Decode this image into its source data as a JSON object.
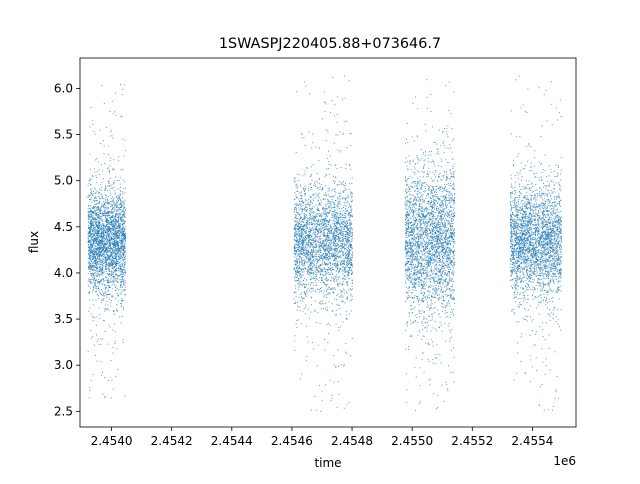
{
  "chart_data": {
    "type": "scatter",
    "title": "1SWASPJ220405.88+073646.7",
    "xlabel": "time",
    "ylabel": "flux",
    "x_offset_label": "1e6",
    "xlim": [
      2453895,
      2455545
    ],
    "ylim": [
      2.33,
      6.33
    ],
    "x_ticks": [
      2.454,
      2.4542,
      2.4544,
      2.4546,
      2.4548,
      2.455,
      2.4552,
      2.4554
    ],
    "x_tick_labels": [
      "2.4540",
      "2.4542",
      "2.4544",
      "2.4546",
      "2.4548",
      "2.4550",
      "2.4552",
      "2.4554"
    ],
    "y_ticks": [
      2.5,
      3.0,
      3.5,
      4.0,
      4.5,
      5.0,
      5.5,
      6.0
    ],
    "y_tick_labels": [
      "2.5",
      "3.0",
      "3.5",
      "4.0",
      "4.5",
      "5.0",
      "5.5",
      "6.0"
    ],
    "grid": false,
    "marker_color": "#1f77b4",
    "series": [
      {
        "x_range": [
          2453920,
          2454045
        ],
        "core_y": [
          3.85,
          4.95
        ],
        "y_center": 4.35,
        "y_range": [
          2.6,
          6.07
        ]
      },
      {
        "x_range": [
          2454605,
          2454800
        ],
        "core_y": [
          3.8,
          5.0
        ],
        "y_center": 4.35,
        "y_range": [
          2.5,
          6.15
        ]
      },
      {
        "x_range": [
          2454975,
          2455140
        ],
        "core_y": [
          3.6,
          5.2
        ],
        "y_center": 4.35,
        "y_range": [
          2.5,
          6.1
        ]
      },
      {
        "x_range": [
          2455325,
          2455495
        ],
        "core_y": [
          3.8,
          5.0
        ],
        "y_center": 4.35,
        "y_range": [
          2.5,
          6.15
        ]
      }
    ]
  }
}
